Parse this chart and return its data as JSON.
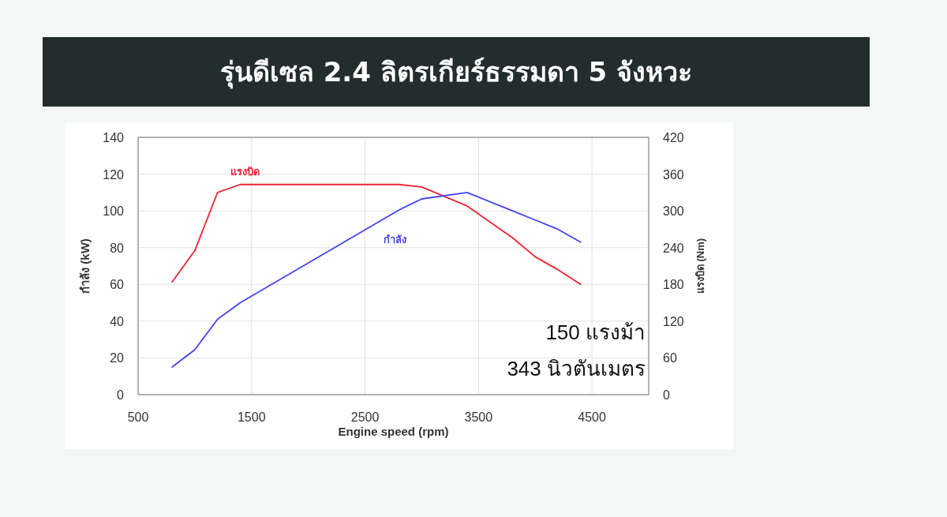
{
  "chart_data": {
    "type": "line",
    "title": "รุ่นดีเซล 2.4 ลิตรเกียร์ธรรมดา 5 จังหวะ",
    "xlabel": "Engine speed (rpm)",
    "ylabel": "กำลัง (kW)",
    "y2label": "แรงบิด (Nm)",
    "xlim": [
      500,
      5000
    ],
    "xticks": [
      500,
      1500,
      2500,
      3500,
      4500
    ],
    "ylim": [
      0,
      140
    ],
    "yticks": [
      0,
      20,
      40,
      60,
      80,
      100,
      120,
      140
    ],
    "y2lim": [
      0,
      420
    ],
    "y2ticks": [
      0,
      60,
      120,
      180,
      240,
      300,
      360,
      420
    ],
    "grid": true,
    "marker": "none",
    "line_style": "solid",
    "series": [
      {
        "name": "แรงบิด",
        "color": "#ee2233",
        "axis": "y2",
        "x": [
          800,
          1000,
          1200,
          1400,
          2800,
          3000,
          3400,
          3800,
          4000,
          4200,
          4400
        ],
        "values": [
          184,
          235,
          330,
          343,
          343,
          339,
          308,
          256,
          225,
          204,
          180
        ]
      },
      {
        "name": "กำลัง",
        "color": "#4444ee",
        "x": [
          800,
          1000,
          1200,
          1400,
          2800,
          3000,
          3400,
          3800,
          4000,
          4200,
          4400
        ],
        "values": [
          15,
          24.5,
          41,
          50,
          100.5,
          106.5,
          110,
          100,
          95,
          90,
          83
        ]
      }
    ],
    "annotations": [
      "150 แรงม้า",
      "343 นิวตันเมตร"
    ]
  }
}
